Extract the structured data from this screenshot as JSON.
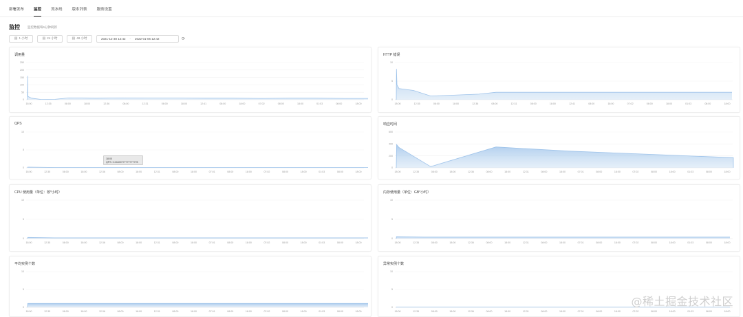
{
  "tabs": [
    {
      "label": "部署发布",
      "active": false
    },
    {
      "label": "监控",
      "active": true
    },
    {
      "label": "流水线",
      "active": false
    },
    {
      "label": "版本列表",
      "active": false
    },
    {
      "label": "服务设置",
      "active": false
    }
  ],
  "header": {
    "title": "监控",
    "subtitle": "监控数据每5分钟刷新"
  },
  "toolbar": {
    "buttons": [
      {
        "label": "1 小时",
        "icon": "calendar-icon"
      },
      {
        "label": "24 小时",
        "icon": "calendar-icon"
      },
      {
        "label": "48 小时",
        "icon": "calendar-icon"
      }
    ],
    "range_start": "2021-12-30 12:42",
    "range_end": "2022-01-06 12:42",
    "refresh_icon": "refresh-icon"
  },
  "tooltip": {
    "time": "18:00",
    "line": "QPS: 0.04400777777777778"
  },
  "watermark": "@稀土掘金技术社区",
  "colors": {
    "area_fill": "#c6dcf2",
    "area_stroke": "#9ec3ea",
    "tab_active": "#222222"
  },
  "charts": [
    {
      "id": "calls",
      "title": "调用量",
      "yticks": [
        "0",
        "50",
        "100",
        "150",
        "200",
        "250"
      ],
      "xlabels": [
        "18:00",
        "12:35",
        "08:00",
        "18:00",
        "12:36",
        "08:00",
        "12:31",
        "08:00",
        "18:00",
        "12:41",
        "08:00",
        "18:00",
        "07:02",
        "08:00",
        "18:00",
        "01:03",
        "08:00",
        "18:00"
      ],
      "ymax": 250,
      "points": [
        [
          0,
          0
        ],
        [
          0.3,
          160
        ],
        [
          0.6,
          22
        ],
        [
          6,
          10
        ],
        [
          20,
          2
        ],
        [
          40,
          3
        ],
        [
          60,
          12
        ],
        [
          100,
          10
        ],
        [
          140,
          12
        ],
        [
          180,
          11
        ],
        [
          220,
          11
        ],
        [
          260,
          10
        ],
        [
          300,
          10
        ],
        [
          340,
          9
        ],
        [
          380,
          10
        ],
        [
          420,
          10
        ],
        [
          460,
          9
        ],
        [
          495,
          9
        ]
      ]
    },
    {
      "id": "http",
      "title": "HTTP 错误",
      "yticks": [
        "0",
        "5",
        "10"
      ],
      "xlabels": [
        "18:00",
        "12:35",
        "08:00",
        "18:00",
        "12:36",
        "08:00",
        "12:31",
        "08:00",
        "18:00",
        "12:41",
        "08:00",
        "18:00",
        "07:02",
        "08:00",
        "18:00",
        "01:03",
        "08:00",
        "18:00"
      ],
      "ymax": 10,
      "points": [
        [
          0,
          0
        ],
        [
          0.3,
          8.3
        ],
        [
          1,
          4
        ],
        [
          4,
          3
        ],
        [
          25,
          2.5
        ],
        [
          50,
          1
        ],
        [
          80,
          1.2
        ],
        [
          120,
          1.5
        ],
        [
          145,
          2
        ],
        [
          180,
          2
        ],
        [
          220,
          2
        ],
        [
          260,
          2
        ],
        [
          300,
          2
        ],
        [
          340,
          2
        ],
        [
          380,
          2
        ],
        [
          420,
          2
        ],
        [
          460,
          2
        ],
        [
          488,
          2
        ]
      ]
    },
    {
      "id": "qps",
      "title": "QPS",
      "yticks": [
        "0",
        "5",
        "10"
      ],
      "xlabels": [
        "18:00",
        "12:35",
        "08:00",
        "18:00",
        "12:36",
        "08:00",
        "18:00",
        "12:31",
        "08:00",
        "18:00",
        "07:01",
        "08:00",
        "18:00",
        "07:02",
        "08:00",
        "18:00",
        "01:03",
        "08:00",
        "18:00"
      ],
      "ymax": 10,
      "points": [
        [
          0,
          0
        ],
        [
          0.3,
          0.2
        ],
        [
          40,
          0.1
        ],
        [
          100,
          0.1
        ],
        [
          150,
          0.1
        ],
        [
          200,
          0.1
        ],
        [
          260,
          0.1
        ],
        [
          320,
          0.1
        ],
        [
          380,
          0.1
        ],
        [
          440,
          0.1
        ],
        [
          495,
          0.1
        ]
      ]
    },
    {
      "id": "latency",
      "title": "响应时间",
      "yticks": [
        "0",
        "200",
        "400",
        "600"
      ],
      "xlabels": [
        "18:00",
        "12:35",
        "08:00",
        "18:00",
        "12:36",
        "08:00",
        "18:00",
        "12:31",
        "08:00",
        "18:00",
        "07:01",
        "08:00",
        "18:00",
        "07:02",
        "08:00",
        "18:00",
        "01:03",
        "08:00",
        "18:00"
      ],
      "ymax": 600,
      "points": [
        [
          0,
          0
        ],
        [
          0.5,
          390
        ],
        [
          4,
          340
        ],
        [
          50,
          20
        ],
        [
          145,
          350
        ],
        [
          250,
          280
        ],
        [
          380,
          220
        ],
        [
          490,
          170
        ],
        [
          490,
          0
        ]
      ]
    },
    {
      "id": "cpu",
      "title": "CPU 使用量（单位：核*小时）",
      "yticks": [
        "0",
        "5",
        "10"
      ],
      "xlabels": [
        "18:00",
        "12:35",
        "08:00",
        "18:00",
        "12:36",
        "08:00",
        "18:00",
        "12:31",
        "08:00",
        "18:00",
        "07:01",
        "08:00",
        "18:00",
        "07:02",
        "08:00",
        "18:00",
        "01:03",
        "08:00",
        "18:00"
      ],
      "ymax": 10,
      "points": [
        [
          0,
          0
        ],
        [
          0.3,
          0.3
        ],
        [
          40,
          0.2
        ],
        [
          100,
          0.2
        ],
        [
          160,
          0.2
        ],
        [
          220,
          0.2
        ],
        [
          280,
          0.2
        ],
        [
          340,
          0.2
        ],
        [
          400,
          0.2
        ],
        [
          460,
          0.2
        ],
        [
          495,
          0.2
        ]
      ]
    },
    {
      "id": "memory",
      "title": "内存使用量（单位：GB*小时）",
      "yticks": [
        "0",
        "5",
        "10"
      ],
      "xlabels": [
        "18:00",
        "12:35",
        "08:00",
        "18:00",
        "12:36",
        "08:00",
        "18:00",
        "12:31",
        "08:00",
        "18:00",
        "07:01",
        "08:00",
        "18:00",
        "07:02",
        "08:00",
        "18:00",
        "01:03",
        "08:00",
        "18:00"
      ],
      "ymax": 10,
      "points": [
        [
          0,
          0
        ],
        [
          0.3,
          0.5
        ],
        [
          40,
          0.4
        ],
        [
          100,
          0.4
        ],
        [
          160,
          0.4
        ],
        [
          220,
          0.4
        ],
        [
          280,
          0.4
        ],
        [
          340,
          0.4
        ],
        [
          400,
          0.4
        ],
        [
          460,
          0.4
        ],
        [
          485,
          0.4
        ]
      ]
    },
    {
      "id": "instances",
      "title": "平均实例个数",
      "yticks": [
        "0",
        "5",
        "10"
      ],
      "xlabels": [
        "18:00",
        "12:35",
        "08:00",
        "18:00",
        "12:36",
        "08:00",
        "18:00",
        "12:31",
        "08:00",
        "18:00",
        "07:01",
        "08:00",
        "18:00",
        "07:02",
        "08:00",
        "18:00",
        "01:03",
        "08:00",
        "18:00"
      ],
      "ymax": 10,
      "points": [
        [
          0,
          0
        ],
        [
          0.3,
          1.1
        ],
        [
          40,
          1.1
        ],
        [
          100,
          1.1
        ],
        [
          160,
          1.1
        ],
        [
          220,
          1.1
        ],
        [
          280,
          1.1
        ],
        [
          340,
          1.1
        ],
        [
          400,
          1.1
        ],
        [
          460,
          1.1
        ],
        [
          495,
          1.1
        ]
      ]
    },
    {
      "id": "errors",
      "title": "异常实例个数",
      "yticks": [
        "0",
        "5",
        "10"
      ],
      "xlabels": [
        "18:00",
        "12:35",
        "08:00",
        "18:00",
        "12:36",
        "08:00",
        "18:00",
        "12:31",
        "08:00",
        "18:00",
        "07:01",
        "08:00",
        "18:00",
        "07:02",
        "08:00",
        "18:00",
        "01:03",
        "08:00",
        "18:00"
      ],
      "ymax": 10,
      "points": [
        [
          0,
          0
        ],
        [
          0.3,
          0.1
        ],
        [
          100,
          0.1
        ],
        [
          200,
          0.1
        ],
        [
          300,
          0.1
        ],
        [
          400,
          0.1
        ],
        [
          485,
          0.1
        ]
      ]
    }
  ]
}
